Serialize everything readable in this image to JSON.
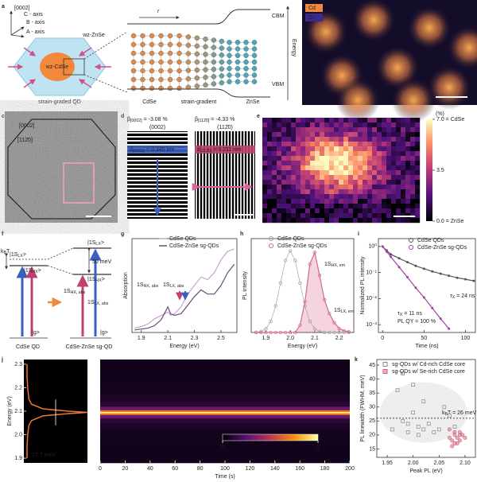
{
  "panel_labels": [
    "a",
    "b",
    "c",
    "d",
    "e",
    "f",
    "g",
    "h",
    "i",
    "j",
    "k"
  ],
  "a": {
    "direction": "[0002]",
    "axes": [
      "C - axis",
      "B - axis",
      "A - axis"
    ],
    "shell": "wz-ZnSe",
    "core": "wz-CdSe",
    "caption": "strain-graded QD",
    "r": "r",
    "cbm": "CBM",
    "vbm": "VBM",
    "energy": "Energy",
    "regions": [
      "CdSe",
      "strain-gradient",
      "ZnSe"
    ]
  },
  "b": {
    "legend": [
      "Cd",
      "Zn"
    ]
  },
  "c": {
    "directions": [
      "[0002]",
      "[112̄0]"
    ]
  },
  "d": {
    "left": {
      "beta": {
        "main": "β",
        "sub": "[0002]",
        "tail": " = -3.08 %"
      },
      "plane": "(0002)",
      "spacing": {
        "main": "d",
        "sub": "(0002)",
        "tail": " = 0.345 nm"
      }
    },
    "right": {
      "beta": {
        "main": "β",
        "sub": "[112̄0]",
        "tail": " = -4.33 %"
      },
      "plane": "(112̄0)",
      "spacing": {
        "main": "d",
        "sub": "(112̄0)",
        "tail": " = 0.211 nm"
      }
    }
  },
  "e": {
    "unit": "(%)",
    "clim": [
      0,
      7
    ],
    "ticks": [
      {
        "value": 7,
        "label": "7.0 = CdSe"
      },
      3.5,
      {
        "value": 0,
        "label": "0.0 = ZnSe"
      }
    ]
  },
  "f": {
    "kbt": {
      "main": "k",
      "sub": "B",
      "tail": "T"
    },
    "gap": "50 meV",
    "levels_left": [
      {
        "main": "|1S",
        "sub": "LX",
        "tail": ">"
      },
      {
        "main": "|1S",
        "sub": "HX",
        "tail": ">"
      }
    ],
    "levels_right": [
      {
        "main": "|1S",
        "sub": "LX",
        "tail": ">"
      },
      {
        "main": "|1S",
        "sub": "HX",
        "tail": ">"
      }
    ],
    "transitions": [
      {
        "main": "1S",
        "sub": "HX, abs"
      },
      {
        "main": "1S",
        "sub": "LX, abs"
      }
    ],
    "ground": [
      "|g>",
      "|g>"
    ],
    "captions": [
      "CdSe QD",
      "CdSe-ZnSe sg-QD"
    ]
  },
  "chart_data": [
    {
      "type": "line",
      "xlabel": "Energy (eV)",
      "ylabel": "Absorption",
      "x": [
        1.85,
        1.9,
        1.95,
        2.0,
        2.05,
        2.08,
        2.1,
        2.12,
        2.15,
        2.2,
        2.25,
        2.3,
        2.35,
        2.4,
        2.45,
        2.5,
        2.55,
        2.6
      ],
      "xlim": [
        1.83,
        2.62
      ],
      "xticks": [
        1.9,
        2.1,
        2.3,
        2.5
      ],
      "ylim": [
        0,
        1.1
      ],
      "series": [
        {
          "name": "CdSe QDs",
          "color": "#c9a3cf",
          "values": [
            0.05,
            0.07,
            0.1,
            0.16,
            0.2,
            0.22,
            0.24,
            0.2,
            0.22,
            0.3,
            0.45,
            0.55,
            0.65,
            0.62,
            0.7,
            0.85,
            0.95,
            0.98
          ]
        },
        {
          "name": "CdSe-ZnSe sg-QDs",
          "color": "#6b4a7a",
          "values": [
            0.03,
            0.04,
            0.05,
            0.08,
            0.15,
            0.24,
            0.3,
            0.22,
            0.2,
            0.22,
            0.32,
            0.42,
            0.5,
            0.45,
            0.45,
            0.55,
            0.7,
            0.8
          ]
        }
      ],
      "annotations": [
        {
          "main": "1S",
          "sub": "HX, abs"
        },
        {
          "main": "1S",
          "sub": "LX, abs"
        }
      ]
    },
    {
      "type": "scatter-line",
      "xlabel": "Energy (eV)",
      "ylabel": "PL intensity",
      "x": [
        1.86,
        1.88,
        1.9,
        1.92,
        1.94,
        1.96,
        1.98,
        2.0,
        2.02,
        2.04,
        2.06,
        2.08,
        2.1,
        2.12,
        2.14,
        2.16,
        2.18,
        2.2,
        2.22,
        2.24
      ],
      "xlim": [
        1.84,
        2.26
      ],
      "xticks": [
        1.9,
        {
          "value": 2,
          "label": "2.0"
        },
        2.1,
        2.2
      ],
      "ylim": [
        0,
        1.15
      ],
      "series": [
        {
          "name": "CdSe QDs",
          "color": "#9a9a9a",
          "values": [
            0.002,
            0.011,
            0.044,
            0.135,
            0.325,
            0.607,
            0.882,
            1,
            0.882,
            0.607,
            0.325,
            0.135,
            0.044,
            0.011,
            0.002,
            0,
            0,
            0,
            0,
            0
          ]
        },
        {
          "name": "CdSe-ZnSe sg-QDs",
          "color": "#d06a8a",
          "values": [
            0,
            0,
            0,
            0,
            0,
            0,
            0,
            0,
            0,
            0.089,
            0.375,
            0.835,
            0.98,
            0.7,
            0.4,
            0.23,
            0.12,
            0.05,
            0.02,
            0.01
          ]
        }
      ],
      "annotations": [
        {
          "main": "1S",
          "sub": "HX, em"
        },
        {
          "main": "1S",
          "sub": "LX, em"
        }
      ]
    },
    {
      "type": "line",
      "ylog": true,
      "xlabel": "Time (ns)",
      "ylabel": "Normalized PL intensity",
      "x": [
        0,
        5,
        10,
        20,
        30,
        40,
        50,
        60,
        70,
        80,
        90,
        100,
        110
      ],
      "xlim": [
        -5,
        112
      ],
      "xticks": [
        0,
        50,
        100
      ],
      "ylim": [
        0.0005,
        2
      ],
      "yticks": [
        {
          "value": 0.001,
          "label": "10⁻³"
        },
        {
          "value": 0.01,
          "label": "10⁻²"
        },
        {
          "value": 0.1,
          "label": "10⁻¹"
        },
        {
          "value": 1,
          "label": "10⁰"
        }
      ],
      "series": [
        {
          "name": "CdSe QDs",
          "color": "#555555",
          "values": [
            1,
            0.7,
            0.5,
            0.35,
            0.25,
            0.18,
            0.14,
            0.11,
            0.09,
            0.075,
            0.063,
            0.055,
            0.048
          ]
        },
        {
          "name": "CdSe-ZnSe sg-QDs",
          "color": "#a040a0",
          "values": [
            1,
            0.63,
            0.4,
            0.16,
            0.066,
            0.026,
            0.011,
            0.0043,
            0.0017,
            0.0007,
            null,
            null,
            null
          ]
        }
      ],
      "tau_labels": [
        {
          "main": "τ",
          "sub": "X",
          "tail": " = 24 ns"
        },
        {
          "main": "τ",
          "sub": "X",
          "tail": " = 11 ns"
        }
      ],
      "qy_label": "PL QY = 100 %"
    },
    {
      "type": "heatmap",
      "ylabel": "Energy (eV)",
      "xlabel": "Time (s)",
      "y": [
        1.9,
        1.95,
        2.0,
        2.04,
        2.06,
        2.08,
        2.09,
        2.095,
        2.1,
        2.11,
        2.13,
        2.15,
        2.2,
        2.25,
        2.3
      ],
      "values": [
        0.05,
        0.05,
        0.06,
        0.08,
        0.12,
        0.3,
        0.7,
        1,
        0.7,
        0.3,
        0.12,
        0.08,
        0.06,
        0.05,
        0.05
      ],
      "ylim": [
        1.88,
        2.32
      ],
      "yticks": [
        1.9,
        {
          "value": 2,
          "label": "2.0"
        },
        2.1,
        2.2,
        2.3
      ],
      "xlim": [
        0,
        200
      ],
      "xticks": [
        0,
        20,
        40,
        60,
        80,
        100,
        120,
        140,
        160,
        180,
        200
      ],
      "clim": [
        0,
        1
      ],
      "cticks": [
        0,
        1
      ],
      "linewidth_label": "17.7 meV"
    },
    {
      "type": "scatter",
      "xlabel": "Peak PL (eV)",
      "ylabel": "PL linewidth (FWHM, meV)",
      "xlim": [
        1.93,
        2.12
      ],
      "xticks": [
        1.95,
        {
          "value": 2,
          "label": "2.00"
        },
        2.05,
        {
          "value": 2.1,
          "label": "2.10"
        }
      ],
      "ylim": [
        12,
        47
      ],
      "yticks": [
        15,
        20,
        25,
        30,
        35,
        40,
        45
      ],
      "hline": 26,
      "hline_label": {
        "main": "k",
        "sub": "B",
        "tail": "T = 26 meV"
      },
      "series": [
        {
          "name": "sg-QDs w/ Cd-rich CdSe core",
          "color": "#888888",
          "marker": "square",
          "x": [
            1.96,
            1.97,
            1.98,
            1.99,
            1.99,
            2.0,
            2.0,
            2.01,
            2.01,
            2.02,
            2.02,
            2.03,
            2.04,
            2.05,
            2.06,
            2.07,
            2.08,
            1.98
          ],
          "values": [
            22,
            36,
            25,
            24,
            21,
            28,
            38,
            23,
            20,
            22,
            32,
            24,
            21,
            22,
            30,
            27,
            23,
            42
          ]
        },
        {
          "name": "sg-QDs w/ Se-rich CdSe core",
          "color": "#d0607a",
          "marker": "circle",
          "x": [
            2.07,
            2.075,
            2.08,
            2.08,
            2.085,
            2.09,
            2.09,
            2.095,
            2.07,
            2.08,
            2.085,
            2.1,
            2.075,
            2.09
          ],
          "values": [
            19,
            18,
            20,
            17,
            19,
            21,
            18,
            20,
            22,
            21,
            17,
            19,
            16,
            20
          ]
        }
      ]
    }
  ]
}
